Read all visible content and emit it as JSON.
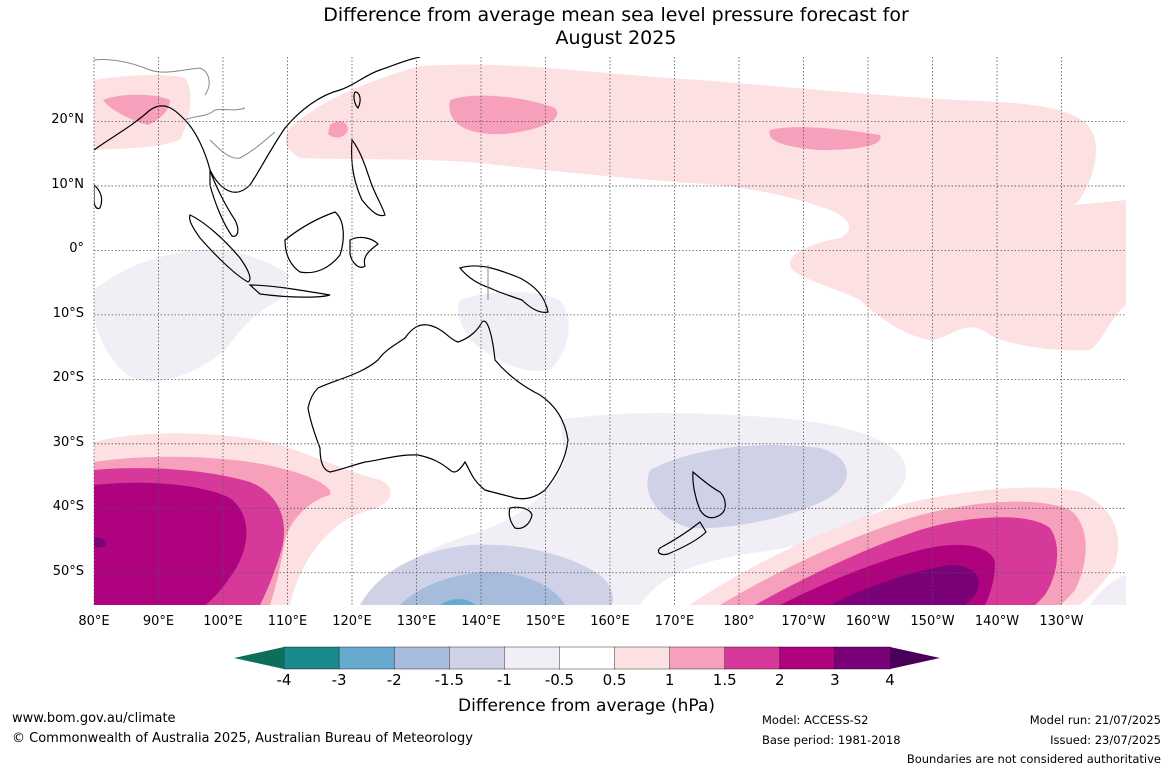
{
  "title": {
    "line1": "Difference from average mean sea level pressure forecast for",
    "line2": "August 2025"
  },
  "map": {
    "lat_labels": [
      "20°N",
      "10°N",
      "0°",
      "10°S",
      "20°S",
      "30°S",
      "40°S",
      "50°S"
    ],
    "lon_labels": [
      "80°E",
      "90°E",
      "100°E",
      "110°E",
      "120°E",
      "130°E",
      "140°E",
      "150°E",
      "160°E",
      "170°E",
      "180°",
      "170°W",
      "160°W",
      "150°W",
      "140°W",
      "130°W"
    ],
    "lat_values": [
      20,
      10,
      0,
      -10,
      -20,
      -30,
      -40,
      -50
    ],
    "lon_values": [
      80,
      90,
      100,
      110,
      120,
      130,
      140,
      150,
      160,
      170,
      180,
      190,
      200,
      210,
      220,
      230
    ],
    "extent": {
      "lon_min": 80,
      "lon_max": 240,
      "lat_min": -55,
      "lat_max": 30
    },
    "gridlines": "dotted"
  },
  "colorbar": {
    "ticks": [
      "-4",
      "-3",
      "-2",
      "-1.5",
      "-1",
      "-0.5",
      "0.5",
      "1",
      "1.5",
      "2",
      "3",
      "4"
    ],
    "colors": [
      "#1a8a8c",
      "#68a9d0",
      "#a7bbdc",
      "#cfd1e7",
      "#f2eef6",
      "#ffffff",
      "#fde0e1",
      "#f7a0bc",
      "#d6399a",
      "#ae027e",
      "#7a0177"
    ],
    "under_color": "#0d6e5c",
    "over_color": "#4a0058",
    "label": "Difference from average (hPa)"
  },
  "footer": {
    "website": "www.bom.gov.au/climate",
    "copyright": "© Commonwealth of Australia 2025, Australian Bureau of Meteorology",
    "model": "Model: ACCESS-S2",
    "base_period": "Base period: 1981-2018",
    "model_run": "Model run: 21/07/2025",
    "issued": "Issued: 23/07/2025",
    "disclaimer": "Boundaries are not considered authoritative"
  }
}
